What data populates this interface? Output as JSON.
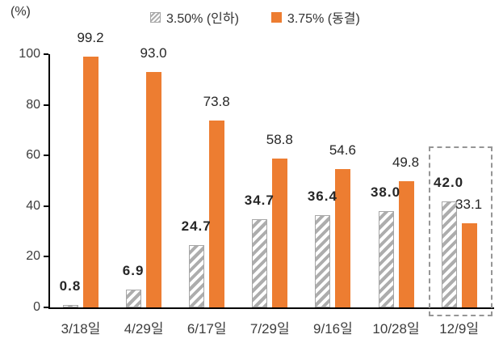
{
  "chart": {
    "unit_label": "(%)",
    "legend": {
      "items": [
        {
          "label": "3.50% (인하)",
          "swatch": "hatched-gray"
        },
        {
          "label": "3.75% (동결)",
          "swatch": "solid-orange"
        }
      ]
    },
    "highlight": {
      "category": "12/9일",
      "style": "dashed-box"
    }
  },
  "chart_data": {
    "type": "bar",
    "title": "",
    "xlabel": "",
    "ylabel": "(%)",
    "categories": [
      "3/18일",
      "4/29일",
      "6/17일",
      "7/29일",
      "9/16일",
      "10/28일",
      "12/9일"
    ],
    "series": [
      {
        "name": "3.50% (인하)",
        "style": "hatched-gray",
        "label_weight": "bold",
        "values": [
          0.8,
          6.9,
          24.7,
          34.7,
          36.4,
          38.0,
          42.0
        ]
      },
      {
        "name": "3.75% (동결)",
        "style": "solid-orange",
        "label_weight": "regular",
        "values": [
          99.2,
          93.0,
          73.8,
          58.8,
          54.6,
          49.8,
          33.1
        ]
      }
    ],
    "ylim": [
      0,
      100
    ],
    "yticks": [
      0,
      20,
      40,
      60,
      80,
      100
    ],
    "grid": false,
    "legend_position": "top-center",
    "value_labels": "above-bars",
    "highlighted_category": "12/9일"
  },
  "colors": {
    "orange": "#ED7D31",
    "hatch_stripe": "#ADADAD",
    "hatch_border": "#A6A6A6",
    "axis": "#000000",
    "value_text": "#262626",
    "tick_text": "#3D3D3D",
    "dashed_box": "#969696"
  }
}
